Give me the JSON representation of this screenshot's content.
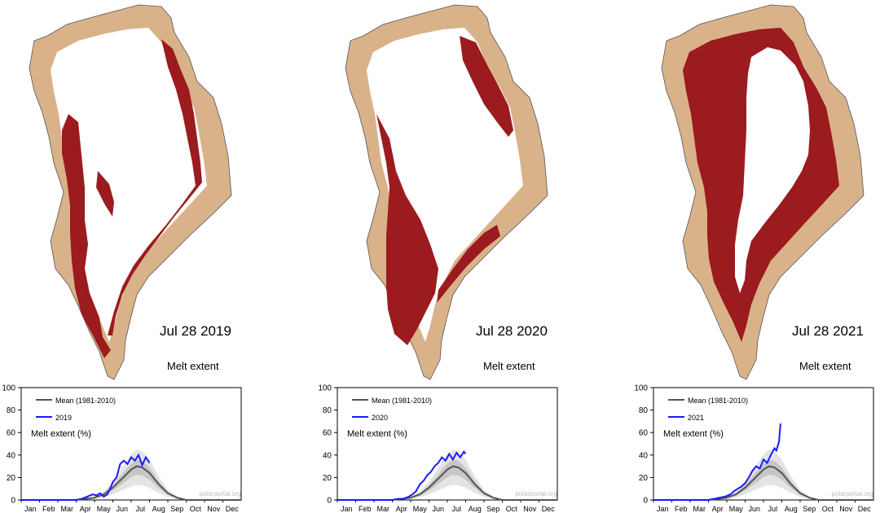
{
  "map_colors": {
    "land": "#d9b28a",
    "melt": "#9b1b1e",
    "ice": "#ffffff",
    "coast": "#555555"
  },
  "chart_colors": {
    "mean": "#555555",
    "year": "#1a1aff",
    "band_outer": "#e4e4e4",
    "band_inner": "#c6c6c6",
    "watermark": "#bbbbbb"
  },
  "panels": [
    {
      "date_label": "Jul 28 2019",
      "melt_title": "Melt extent"
    },
    {
      "date_label": "Jul 28 2020",
      "melt_title": "Melt extent"
    },
    {
      "date_label": "Jul 28 2021",
      "melt_title": "Melt extent"
    }
  ],
  "chart_data": [
    {
      "type": "line",
      "ylabel": "Melt extent (%)",
      "watermark": "polarportal.org",
      "ylim": [
        0,
        100
      ],
      "yticks": [
        0,
        20,
        40,
        60,
        80,
        100
      ],
      "months": [
        "Jan",
        "Feb",
        "Mar",
        "Apr",
        "May",
        "Jun",
        "Jul",
        "Aug",
        "Sep",
        "Oct",
        "Nov",
        "Dec"
      ],
      "legend": {
        "mean": "Mean (1981-2010)",
        "year": "2019"
      },
      "mean_x": [
        0,
        3,
        3.5,
        4,
        4.5,
        5,
        5.5,
        6,
        6.3,
        6.6,
        7,
        7.5,
        8,
        8.5,
        9,
        12
      ],
      "mean_y": [
        0,
        0,
        1,
        2,
        5,
        11,
        19,
        27,
        30,
        29,
        24,
        14,
        6,
        2,
        0,
        0
      ],
      "x": [
        0,
        3,
        3.3,
        3.6,
        3.9,
        4.1,
        4.3,
        4.5,
        4.7,
        4.9,
        5.0,
        5.2,
        5.4,
        5.6,
        5.8,
        6.0,
        6.2,
        6.4,
        6.6,
        6.8,
        7.0
      ],
      "y": [
        0,
        0,
        1,
        3,
        5,
        4,
        6,
        3,
        5,
        12,
        16,
        20,
        32,
        35,
        32,
        38,
        35,
        40,
        31,
        38,
        33
      ]
    },
    {
      "type": "line",
      "ylabel": "Melt extent (%)",
      "watermark": "polarportal.org",
      "ylim": [
        0,
        100
      ],
      "yticks": [
        0,
        20,
        40,
        60,
        80,
        100
      ],
      "months": [
        "Jan",
        "Feb",
        "Mar",
        "Apr",
        "May",
        "Jun",
        "Jul",
        "Aug",
        "Sep",
        "Oct",
        "Nov",
        "Dec"
      ],
      "legend": {
        "mean": "Mean (1981-2010)",
        "year": "2020"
      },
      "mean_x": [
        0,
        3,
        3.5,
        4,
        4.5,
        5,
        5.5,
        6,
        6.3,
        6.6,
        7,
        7.5,
        8,
        8.5,
        9,
        12
      ],
      "mean_y": [
        0,
        0,
        1,
        2,
        5,
        11,
        19,
        27,
        30,
        29,
        24,
        14,
        6,
        2,
        0,
        0
      ],
      "x": [
        0,
        3,
        3.3,
        3.6,
        3.9,
        4.1,
        4.3,
        4.5,
        4.7,
        4.9,
        5.1,
        5.3,
        5.5,
        5.7,
        5.9,
        6.1,
        6.3,
        6.5,
        6.7,
        6.9,
        7.0
      ],
      "y": [
        0,
        0,
        1,
        1,
        3,
        5,
        8,
        14,
        17,
        22,
        25,
        30,
        33,
        38,
        35,
        41,
        36,
        42,
        38,
        43,
        41
      ]
    },
    {
      "type": "line",
      "ylabel": "Melt extent (%)",
      "watermark": "polarportal.org",
      "ylim": [
        0,
        100
      ],
      "yticks": [
        0,
        20,
        40,
        60,
        80,
        100
      ],
      "months": [
        "Jan",
        "Feb",
        "Mar",
        "Apr",
        "May",
        "Jun",
        "Jul",
        "Aug",
        "Sep",
        "Oct",
        "Nov",
        "Dec"
      ],
      "legend": {
        "mean": "Mean (1981-2010)",
        "year": "2021"
      },
      "mean_x": [
        0,
        3,
        3.5,
        4,
        4.5,
        5,
        5.5,
        6,
        6.3,
        6.6,
        7,
        7.5,
        8,
        8.5,
        9,
        12
      ],
      "mean_y": [
        0,
        0,
        1,
        2,
        5,
        11,
        19,
        27,
        30,
        29,
        24,
        14,
        6,
        2,
        0,
        0
      ],
      "x": [
        0,
        3,
        3.3,
        3.6,
        3.9,
        4.2,
        4.4,
        4.6,
        4.8,
        5.0,
        5.2,
        5.4,
        5.6,
        5.8,
        6.0,
        6.2,
        6.4,
        6.6,
        6.7,
        6.85,
        6.93
      ],
      "y": [
        0,
        0,
        1,
        2,
        3,
        5,
        8,
        10,
        12,
        15,
        20,
        26,
        30,
        28,
        36,
        33,
        40,
        46,
        44,
        52,
        68
      ]
    }
  ]
}
